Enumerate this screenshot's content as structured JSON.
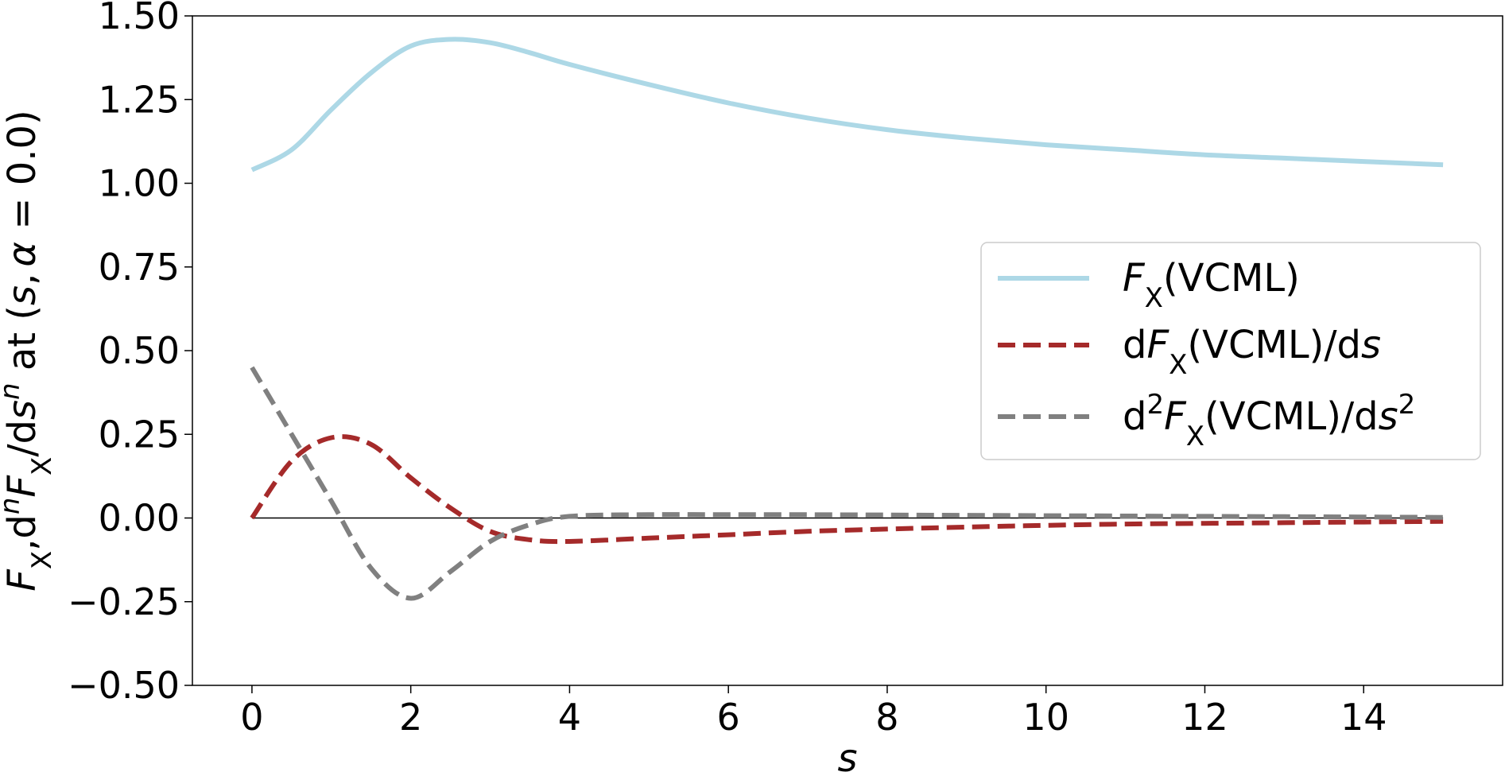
{
  "chart_data": {
    "type": "line",
    "xlabel": "s",
    "ylabel": {
      "F": "F",
      "sub": "X",
      "comma": ",",
      "d": "d",
      "n": "n",
      "slash": "/d",
      "s": "s",
      "at": " at (",
      "alpha": "α",
      "eq": " = 0.0)"
    },
    "xlim": [
      -0.75,
      15.75
    ],
    "ylim": [
      -0.5,
      1.5
    ],
    "xticks": [
      0,
      2,
      4,
      6,
      8,
      10,
      12,
      14
    ],
    "xtick_labels": [
      "0",
      "2",
      "4",
      "6",
      "8",
      "10",
      "12",
      "14"
    ],
    "yticks": [
      -0.5,
      -0.25,
      0.0,
      0.25,
      0.5,
      0.75,
      1.0,
      1.25,
      1.5
    ],
    "ytick_labels": [
      "−0.50",
      "−0.25",
      "0.00",
      "0.25",
      "0.50",
      "0.75",
      "1.00",
      "1.25",
      "1.50"
    ],
    "grid": false,
    "legend_position": "center-right",
    "zero_line": true,
    "x": [
      0,
      0.5,
      1,
      1.5,
      2,
      2.5,
      3,
      3.5,
      4,
      5,
      6,
      7,
      8,
      9,
      10,
      11,
      12,
      13,
      14,
      15
    ],
    "series": [
      {
        "name": {
          "F": "F",
          "sub": "X",
          "rest": "(VCML)"
        },
        "color": "#add8e6",
        "dash": "solid",
        "values": [
          1.04,
          1.1,
          1.22,
          1.33,
          1.41,
          1.43,
          1.42,
          1.39,
          1.355,
          1.295,
          1.24,
          1.195,
          1.16,
          1.135,
          1.115,
          1.1,
          1.085,
          1.075,
          1.065,
          1.055
        ]
      },
      {
        "name": {
          "d": "d",
          "F": "F",
          "sub": "X",
          "rest": "(VCML)/d",
          "s": "s"
        },
        "color": "#a52a2a",
        "dash": "dashed",
        "values": [
          0.0,
          0.17,
          0.24,
          0.22,
          0.12,
          0.03,
          -0.04,
          -0.065,
          -0.07,
          -0.06,
          -0.05,
          -0.04,
          -0.033,
          -0.027,
          -0.022,
          -0.018,
          -0.016,
          -0.014,
          -0.012,
          -0.01
        ]
      },
      {
        "name": {
          "d": "d",
          "sup": "2",
          "F": "F",
          "sub": "X",
          "rest": "(VCML)/d",
          "s": "s",
          "sup2": "2"
        },
        "color": "#808080",
        "dash": "dashed",
        "values": [
          0.45,
          0.25,
          0.05,
          -0.15,
          -0.24,
          -0.16,
          -0.07,
          -0.02,
          0.005,
          0.01,
          0.01,
          0.01,
          0.009,
          0.008,
          0.007,
          0.006,
          0.005,
          0.004,
          0.003,
          0.002
        ]
      }
    ]
  }
}
